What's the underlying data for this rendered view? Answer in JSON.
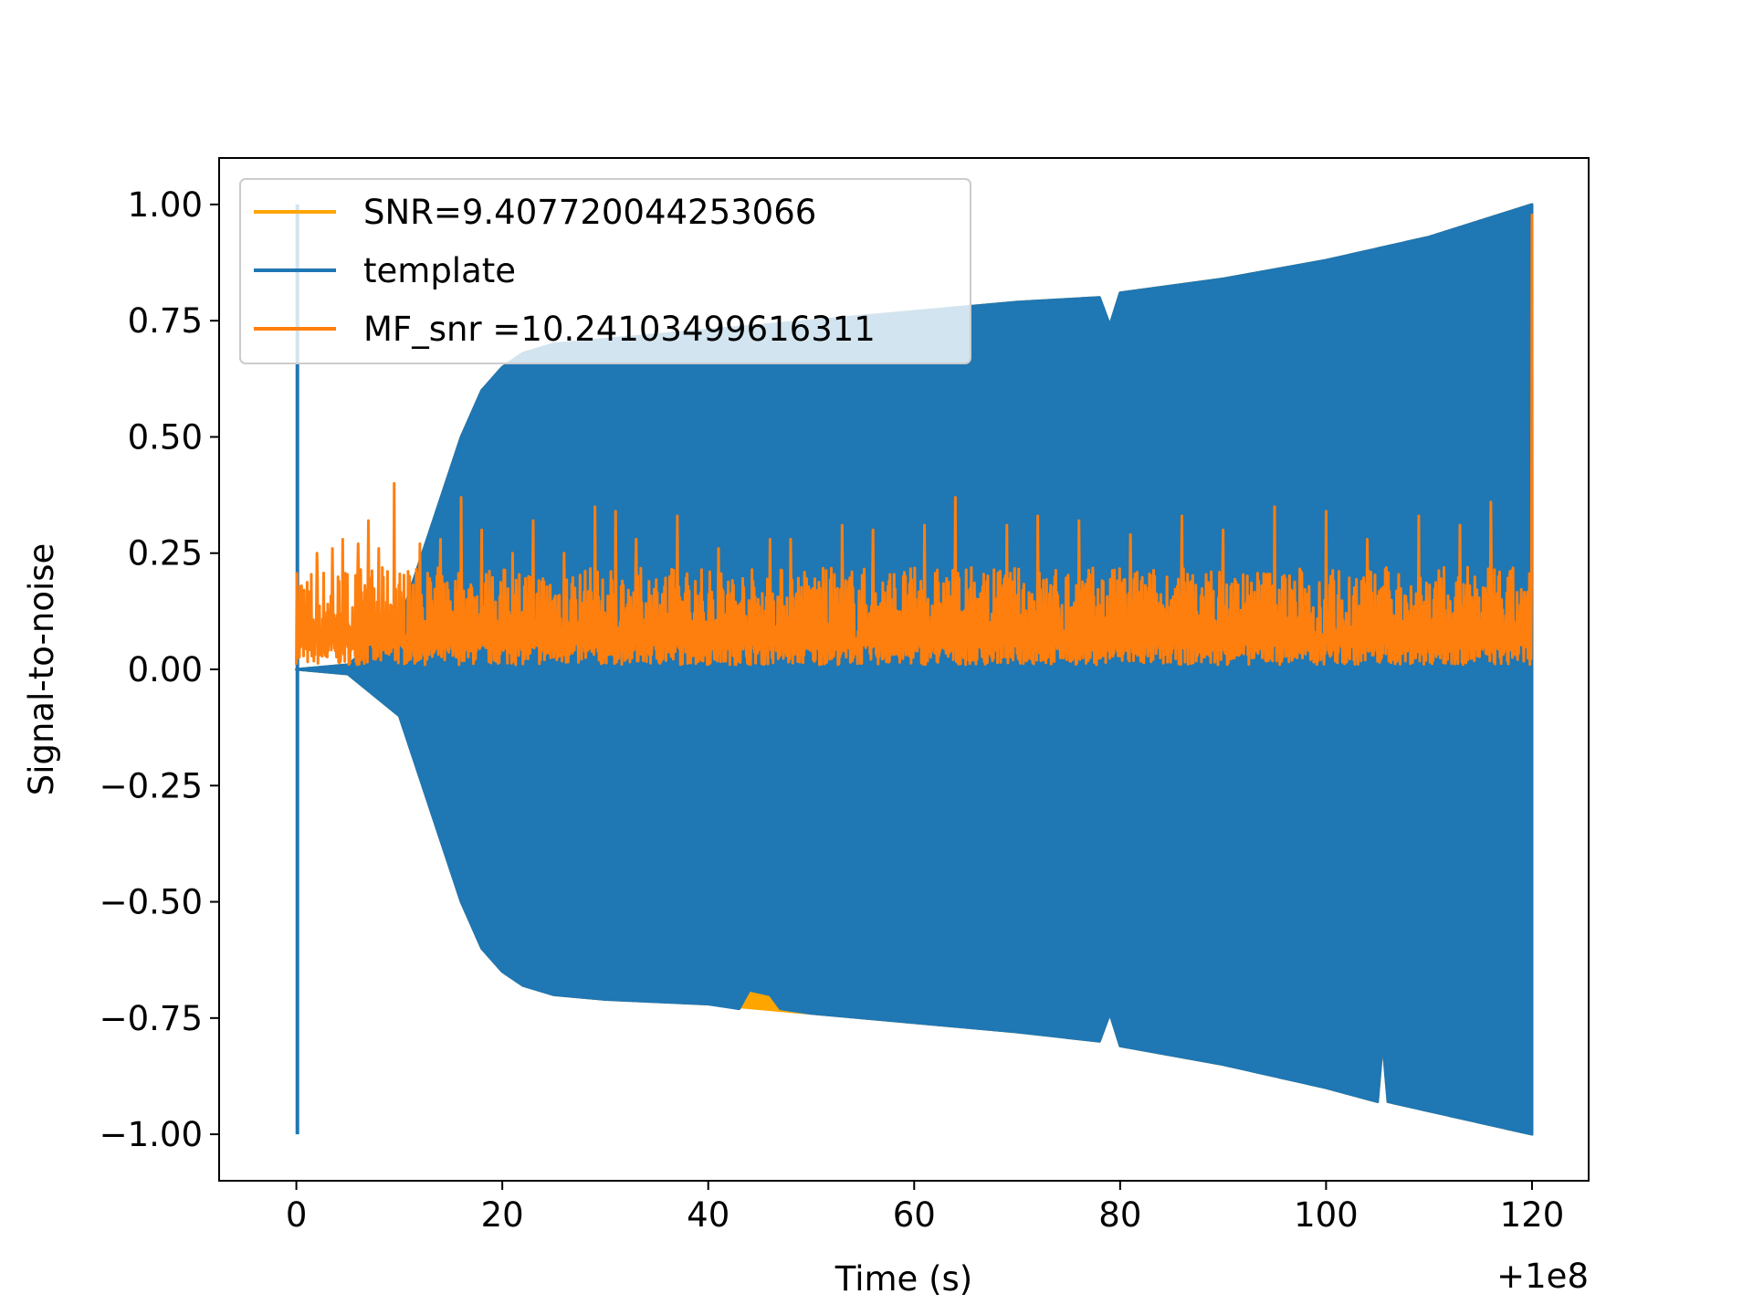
{
  "chart_data": {
    "type": "line",
    "title": "",
    "xlabel": "Time (s)",
    "ylabel": "Signal-to-noise",
    "x_offset_label": "+1e8",
    "xlim": [
      -7.5,
      125.5
    ],
    "ylim": [
      -1.1,
      1.1
    ],
    "xticks": [
      0,
      20,
      40,
      60,
      80,
      100,
      120
    ],
    "yticks": [
      1.0,
      0.75,
      0.5,
      0.25,
      0.0,
      -0.25,
      -0.5,
      -0.75,
      -1.0
    ],
    "xtick_labels": [
      "0",
      "20",
      "40",
      "60",
      "80",
      "100",
      "120"
    ],
    "ytick_labels": [
      "1.00",
      "0.75",
      "0.50",
      "0.25",
      "0.00",
      "−0.25",
      "−0.50",
      "−0.75",
      "−1.00"
    ],
    "grid": false,
    "legend_position": "upper-left",
    "series": [
      {
        "name": "SNR=9.407720044253066",
        "color": "#ffa500",
        "style": "envelope",
        "upper": [
          [
            0.0,
            0.0
          ],
          [
            5,
            0.01
          ],
          [
            10,
            0.1
          ],
          [
            13,
            0.3
          ],
          [
            16,
            0.5
          ],
          [
            18,
            0.6
          ],
          [
            20,
            0.65
          ],
          [
            22,
            0.68
          ],
          [
            25,
            0.7
          ],
          [
            30,
            0.71
          ],
          [
            40,
            0.73
          ],
          [
            50,
            0.75
          ],
          [
            60,
            0.77
          ],
          [
            70,
            0.79
          ],
          [
            78,
            0.8
          ],
          [
            79,
            0.74
          ],
          [
            80,
            0.81
          ],
          [
            90,
            0.84
          ],
          [
            100,
            0.88
          ],
          [
            110,
            0.93
          ],
          [
            120,
            1.0
          ]
        ],
        "lower": [
          [
            0.0,
            0.0
          ],
          [
            5,
            -0.01
          ],
          [
            10,
            -0.1
          ],
          [
            13,
            -0.3
          ],
          [
            16,
            -0.5
          ],
          [
            18,
            -0.6
          ],
          [
            20,
            -0.65
          ],
          [
            22,
            -0.68
          ],
          [
            25,
            -0.7
          ],
          [
            30,
            -0.71
          ],
          [
            40,
            -0.72
          ],
          [
            50,
            -0.74
          ],
          [
            60,
            -0.76
          ],
          [
            70,
            -0.78
          ],
          [
            78,
            -0.8
          ],
          [
            79,
            -0.74
          ],
          [
            80,
            -0.81
          ],
          [
            90,
            -0.85
          ],
          [
            100,
            -0.9
          ],
          [
            105,
            -0.93
          ],
          [
            105.5,
            -0.8
          ],
          [
            106,
            -0.93
          ],
          [
            110,
            -0.95
          ],
          [
            120,
            -1.0
          ]
        ]
      },
      {
        "name": "template",
        "color": "#1f77b4",
        "style": "envelope",
        "spike": {
          "x": 0.1,
          "min": -1.0,
          "max": 1.0
        },
        "upper": [
          [
            0.0,
            0.0
          ],
          [
            5,
            0.01
          ],
          [
            10,
            0.1
          ],
          [
            13,
            0.3
          ],
          [
            16,
            0.5
          ],
          [
            18,
            0.6
          ],
          [
            20,
            0.65
          ],
          [
            22,
            0.68
          ],
          [
            25,
            0.7
          ],
          [
            30,
            0.71
          ],
          [
            40,
            0.73
          ],
          [
            50,
            0.75
          ],
          [
            60,
            0.77
          ],
          [
            70,
            0.79
          ],
          [
            78,
            0.8
          ],
          [
            79,
            0.74
          ],
          [
            80,
            0.81
          ],
          [
            90,
            0.84
          ],
          [
            100,
            0.88
          ],
          [
            110,
            0.93
          ],
          [
            120,
            1.0
          ]
        ],
        "lower": [
          [
            0.0,
            0.0
          ],
          [
            5,
            -0.01
          ],
          [
            10,
            -0.1
          ],
          [
            13,
            -0.3
          ],
          [
            16,
            -0.5
          ],
          [
            18,
            -0.6
          ],
          [
            20,
            -0.65
          ],
          [
            22,
            -0.68
          ],
          [
            25,
            -0.7
          ],
          [
            30,
            -0.71
          ],
          [
            40,
            -0.72
          ],
          [
            43,
            -0.73
          ],
          [
            44,
            -0.69
          ],
          [
            46,
            -0.7
          ],
          [
            47,
            -0.73
          ],
          [
            50,
            -0.74
          ],
          [
            60,
            -0.76
          ],
          [
            70,
            -0.78
          ],
          [
            78,
            -0.8
          ],
          [
            79,
            -0.74
          ],
          [
            80,
            -0.81
          ],
          [
            90,
            -0.85
          ],
          [
            100,
            -0.9
          ],
          [
            105,
            -0.93
          ],
          [
            105.5,
            -0.8
          ],
          [
            106,
            -0.93
          ],
          [
            110,
            -0.95
          ],
          [
            120,
            -1.0
          ]
        ]
      },
      {
        "name": " MF_snr =10.24103499616311",
        "color": "#ff7f0e",
        "style": "noise",
        "x_range": [
          0,
          120
        ],
        "baseline_min": 0.01,
        "typical_max": 0.22,
        "peaks": [
          [
            0.5,
            0.18
          ],
          [
            2,
            0.25
          ],
          [
            3.5,
            0.26
          ],
          [
            4.5,
            0.28
          ],
          [
            6,
            0.27
          ],
          [
            7,
            0.32
          ],
          [
            8,
            0.26
          ],
          [
            9.5,
            0.4
          ],
          [
            11,
            0.2
          ],
          [
            12,
            0.27
          ],
          [
            14,
            0.28
          ],
          [
            16,
            0.37
          ],
          [
            18,
            0.3
          ],
          [
            21,
            0.25
          ],
          [
            23,
            0.32
          ],
          [
            26,
            0.25
          ],
          [
            29,
            0.35
          ],
          [
            31,
            0.34
          ],
          [
            33,
            0.28
          ],
          [
            37,
            0.33
          ],
          [
            41,
            0.26
          ],
          [
            46,
            0.28
          ],
          [
            48,
            0.28
          ],
          [
            53,
            0.31
          ],
          [
            56,
            0.3
          ],
          [
            61,
            0.31
          ],
          [
            64,
            0.37
          ],
          [
            69,
            0.31
          ],
          [
            72,
            0.33
          ],
          [
            76,
            0.32
          ],
          [
            81,
            0.29
          ],
          [
            86,
            0.33
          ],
          [
            90,
            0.3
          ],
          [
            95,
            0.35
          ],
          [
            100,
            0.34
          ],
          [
            104,
            0.28
          ],
          [
            109,
            0.33
          ],
          [
            113,
            0.31
          ],
          [
            116,
            0.36
          ],
          [
            120,
            0.98
          ]
        ]
      }
    ]
  }
}
